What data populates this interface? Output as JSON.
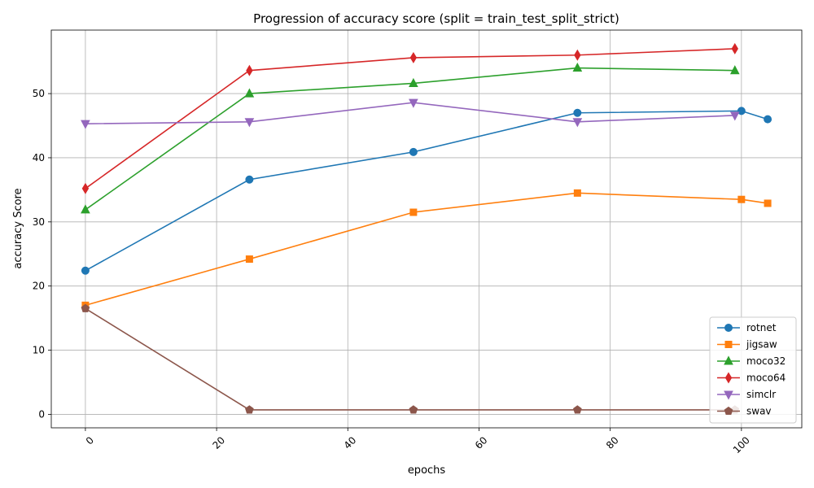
{
  "chart_data": {
    "type": "line",
    "title": "Progression of accuracy score (split = train_test_split_strict)",
    "xlabel": "epochs",
    "ylabel": "accuracy Score",
    "xlim": [
      -5.2,
      109.2
    ],
    "ylim": [
      -2.1,
      59.9
    ],
    "xticks": [
      0,
      20,
      40,
      60,
      80,
      100
    ],
    "yticks": [
      0,
      10,
      20,
      30,
      40,
      50
    ],
    "xtick_rotation": 45,
    "grid": true,
    "legend_position": "lower-right",
    "series": [
      {
        "name": "rotnet",
        "color": "#1f77b4",
        "marker": "circle",
        "x": [
          0,
          25,
          50,
          75,
          100,
          104
        ],
        "y": [
          22.4,
          36.6,
          40.9,
          47.0,
          47.3,
          46.0
        ]
      },
      {
        "name": "jigsaw",
        "color": "#ff7f0e",
        "marker": "square",
        "x": [
          0,
          25,
          50,
          75,
          100,
          104
        ],
        "y": [
          17.0,
          24.2,
          31.5,
          34.5,
          33.5,
          32.9
        ]
      },
      {
        "name": "moco32",
        "color": "#2ca02c",
        "marker": "triangle-up",
        "x": [
          0,
          25,
          50,
          75,
          99
        ],
        "y": [
          31.9,
          50.0,
          51.6,
          54.0,
          53.6
        ]
      },
      {
        "name": "moco64",
        "color": "#d62728",
        "marker": "diamond",
        "x": [
          0,
          25,
          50,
          75,
          99
        ],
        "y": [
          35.2,
          53.6,
          55.6,
          56.0,
          57.0
        ]
      },
      {
        "name": "simclr",
        "color": "#9467bd",
        "marker": "triangle-down",
        "x": [
          0,
          25,
          50,
          75,
          99
        ],
        "y": [
          45.3,
          45.6,
          48.6,
          45.6,
          46.6
        ]
      },
      {
        "name": "swav",
        "color": "#8c564b",
        "marker": "pentagon",
        "x": [
          0,
          25,
          50,
          75,
          99
        ],
        "y": [
          16.5,
          0.7,
          0.7,
          0.7,
          0.7
        ]
      }
    ]
  }
}
